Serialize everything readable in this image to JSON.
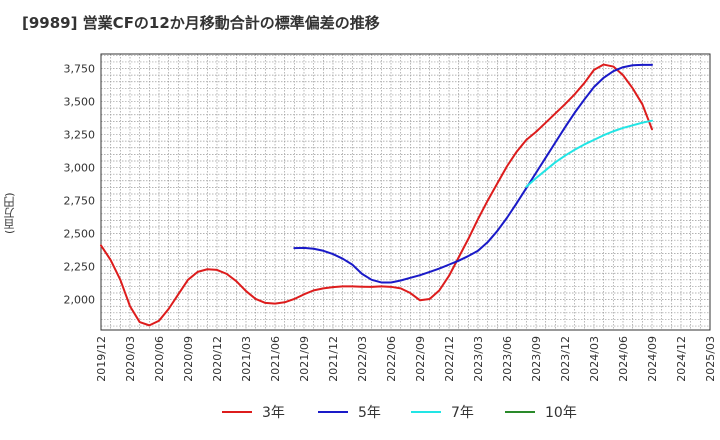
{
  "header": {
    "title": "[9989]  営業CFの12か月移動合計の標準偏差の推移"
  },
  "chart_data": {
    "type": "line",
    "title": "[9989]  営業CFの12か月移動合計の標準偏差の推移",
    "xlabel": "",
    "ylabel": "(百万円)",
    "x_start": "2019/12",
    "x_ticks": [
      "2019/12",
      "2020/03",
      "2020/06",
      "2020/09",
      "2020/12",
      "2021/03",
      "2021/06",
      "2021/09",
      "2021/12",
      "2022/03",
      "2022/06",
      "2022/09",
      "2022/12",
      "2023/03",
      "2023/06",
      "2023/09",
      "2023/12",
      "2024/03",
      "2024/06",
      "2024/09",
      "2024/12",
      "2025/03"
    ],
    "y_ticks": [
      2000,
      2250,
      2500,
      2750,
      3000,
      3250,
      3500,
      3750
    ],
    "y_tick_labels": [
      "2,000",
      "2,250",
      "2,500",
      "2,750",
      "3,000",
      "3,250",
      "3,500",
      "3,750"
    ],
    "xlim": [
      "2019/12",
      "2025/03"
    ],
    "ylim": [
      1770,
      3860
    ],
    "grid": true,
    "legend_position": "bottom",
    "series": [
      {
        "name": "3年",
        "color": "#dd1c1c",
        "points": [
          [
            "2019/12",
            2410
          ],
          [
            "2020/01",
            2300
          ],
          [
            "2020/02",
            2150
          ],
          [
            "2020/03",
            1950
          ],
          [
            "2020/04",
            1830
          ],
          [
            "2020/05",
            1805
          ],
          [
            "2020/06",
            1840
          ],
          [
            "2020/07",
            1930
          ],
          [
            "2020/08",
            2040
          ],
          [
            "2020/09",
            2150
          ],
          [
            "2020/10",
            2210
          ],
          [
            "2020/11",
            2230
          ],
          [
            "2020/12",
            2225
          ],
          [
            "2021/01",
            2195
          ],
          [
            "2021/02",
            2140
          ],
          [
            "2021/03",
            2065
          ],
          [
            "2021/04",
            2005
          ],
          [
            "2021/05",
            1975
          ],
          [
            "2021/06",
            1970
          ],
          [
            "2021/07",
            1980
          ],
          [
            "2021/08",
            2005
          ],
          [
            "2021/09",
            2040
          ],
          [
            "2021/10",
            2070
          ],
          [
            "2021/11",
            2085
          ],
          [
            "2021/12",
            2095
          ],
          [
            "2022/01",
            2100
          ],
          [
            "2022/02",
            2100
          ],
          [
            "2022/03",
            2098
          ],
          [
            "2022/04",
            2097
          ],
          [
            "2022/05",
            2100
          ],
          [
            "2022/06",
            2097
          ],
          [
            "2022/07",
            2085
          ],
          [
            "2022/08",
            2050
          ],
          [
            "2022/09",
            1995
          ],
          [
            "2022/10",
            2005
          ],
          [
            "2022/11",
            2070
          ],
          [
            "2022/12",
            2180
          ],
          [
            "2023/01",
            2320
          ],
          [
            "2023/02",
            2460
          ],
          [
            "2023/03",
            2610
          ],
          [
            "2023/04",
            2750
          ],
          [
            "2023/05",
            2880
          ],
          [
            "2023/06",
            3010
          ],
          [
            "2023/07",
            3120
          ],
          [
            "2023/08",
            3210
          ],
          [
            "2023/09",
            3270
          ],
          [
            "2023/10",
            3340
          ],
          [
            "2023/11",
            3410
          ],
          [
            "2023/12",
            3480
          ],
          [
            "2024/01",
            3555
          ],
          [
            "2024/02",
            3640
          ],
          [
            "2024/03",
            3740
          ],
          [
            "2024/04",
            3780
          ],
          [
            "2024/05",
            3765
          ],
          [
            "2024/06",
            3700
          ],
          [
            "2024/07",
            3600
          ],
          [
            "2024/08",
            3480
          ],
          [
            "2024/09",
            3290
          ]
        ]
      },
      {
        "name": "5年",
        "color": "#1a1ac8",
        "points": [
          [
            "2021/08",
            2390
          ],
          [
            "2021/09",
            2392
          ],
          [
            "2021/10",
            2385
          ],
          [
            "2021/11",
            2370
          ],
          [
            "2021/12",
            2345
          ],
          [
            "2022/01",
            2310
          ],
          [
            "2022/02",
            2265
          ],
          [
            "2022/03",
            2195
          ],
          [
            "2022/04",
            2150
          ],
          [
            "2022/05",
            2130
          ],
          [
            "2022/06",
            2130
          ],
          [
            "2022/07",
            2145
          ],
          [
            "2022/08",
            2165
          ],
          [
            "2022/09",
            2185
          ],
          [
            "2022/10",
            2210
          ],
          [
            "2022/11",
            2235
          ],
          [
            "2022/12",
            2265
          ],
          [
            "2023/01",
            2295
          ],
          [
            "2023/02",
            2330
          ],
          [
            "2023/03",
            2370
          ],
          [
            "2023/04",
            2435
          ],
          [
            "2023/05",
            2520
          ],
          [
            "2023/06",
            2620
          ],
          [
            "2023/07",
            2730
          ],
          [
            "2023/08",
            2845
          ],
          [
            "2023/09",
            2960
          ],
          [
            "2023/10",
            3075
          ],
          [
            "2023/11",
            3190
          ],
          [
            "2023/12",
            3305
          ],
          [
            "2024/01",
            3415
          ],
          [
            "2024/02",
            3515
          ],
          [
            "2024/03",
            3610
          ],
          [
            "2024/04",
            3680
          ],
          [
            "2024/05",
            3730
          ],
          [
            "2024/06",
            3760
          ],
          [
            "2024/07",
            3775
          ],
          [
            "2024/08",
            3778
          ],
          [
            "2024/09",
            3778
          ]
        ]
      },
      {
        "name": "7年",
        "color": "#22e5e5",
        "points": [
          [
            "2023/08",
            2855
          ],
          [
            "2023/09",
            2920
          ],
          [
            "2023/10",
            2980
          ],
          [
            "2023/11",
            3040
          ],
          [
            "2023/12",
            3090
          ],
          [
            "2024/01",
            3135
          ],
          [
            "2024/02",
            3175
          ],
          [
            "2024/03",
            3210
          ],
          [
            "2024/04",
            3245
          ],
          [
            "2024/05",
            3275
          ],
          [
            "2024/06",
            3300
          ],
          [
            "2024/07",
            3320
          ],
          [
            "2024/08",
            3340
          ],
          [
            "2024/09",
            3355
          ]
        ]
      },
      {
        "name": "10年",
        "color": "#2a8a2a",
        "points": []
      }
    ]
  }
}
